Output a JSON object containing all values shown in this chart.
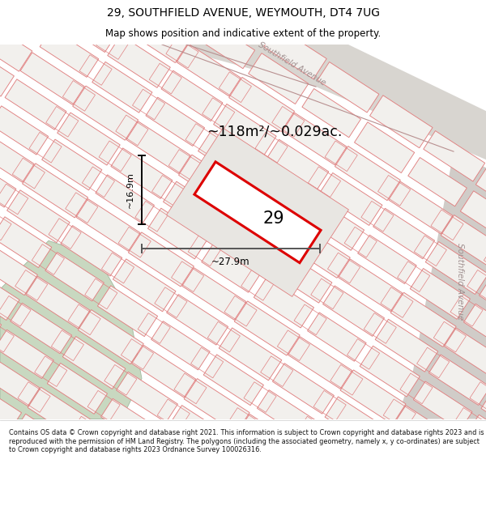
{
  "title_line1": "29, SOUTHFIELD AVENUE, WEYMOUTH, DT4 7UG",
  "title_line2": "Map shows position and indicative extent of the property.",
  "area_text": "~118m²/~0.029ac.",
  "label_29": "29",
  "dim_width": "~27.9m",
  "dim_height": "~16.9m",
  "footer_text": "Contains OS data © Crown copyright and database right 2021. This information is subject to Crown copyright and database rights 2023 and is reproduced with the permission of HM Land Registry. The polygons (including the associated geometry, namely x, y co-ordinates) are subject to Crown copyright and database rights 2023 Ordnance Survey 100026316.",
  "map_bg": "#f0eeeb",
  "parcel_edge_color": "#e08080",
  "parcel_face_color": "#ededea",
  "highlight_color": "#dd0000",
  "green_color": "#c8d8c0",
  "road_color": "#d8d4ce",
  "road_label_color": "#a09090",
  "title_bg": "#ffffff",
  "footer_bg": "#ffffff",
  "parcel_lw": 0.7,
  "highlight_lw": 2.2
}
